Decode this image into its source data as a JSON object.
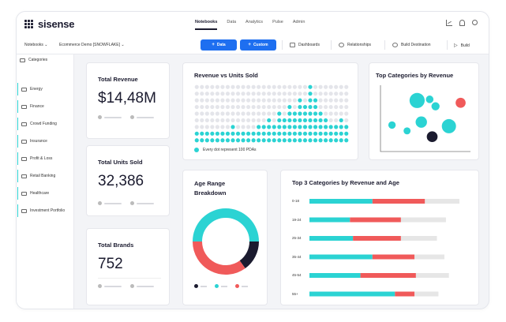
{
  "app": {
    "logo_text": "sisense"
  },
  "nav": [
    {
      "label": "Notebooks",
      "active": true
    },
    {
      "label": "Data",
      "active": false
    },
    {
      "label": "Analytics",
      "active": false
    },
    {
      "label": "Pulse",
      "active": false
    },
    {
      "label": "Admin",
      "active": false
    }
  ],
  "top_icons": [
    "chart-icon",
    "bell-icon",
    "user-icon"
  ],
  "toolbar": {
    "notebooks_label": "Notebooks",
    "model_label": "Ecommerce Demo [SNOWFLAKE]",
    "add_data_label": "Data",
    "add_custom_label": "Custom",
    "dashboards_label": "Dashboards",
    "relationships_label": "Relationships",
    "build_destination_label": "Build Destination",
    "build_label": "Build"
  },
  "sidebar": {
    "header": "Categories",
    "items": [
      {
        "label": "Energy"
      },
      {
        "label": "Finance"
      },
      {
        "label": "Crowd Funding"
      },
      {
        "label": "Insurance"
      },
      {
        "label": "Profit & Loss"
      },
      {
        "label": "Retail Banking"
      },
      {
        "label": "Healthcare"
      },
      {
        "label": "Investment Portfolio"
      }
    ]
  },
  "kpis": [
    {
      "title": "Total Revenue",
      "value": "$14,48M"
    },
    {
      "title": "Total Units Sold",
      "value": "32,386"
    },
    {
      "title": "Total Brands",
      "value": "752"
    }
  ],
  "colors": {
    "accent": "#2bd3d3",
    "red": "#f05a5a",
    "dark": "#1b1b2f",
    "grey": "#e6e6e6",
    "primary": "#1e6ff0"
  },
  "charts": {
    "dot_matrix": {
      "title": "Revenue vs Units Sold",
      "legend": "Every dot represent 100 PDAs",
      "chart_data": {
        "type": "bar",
        "columns": [
          2,
          2,
          2,
          2,
          2,
          2,
          2,
          3,
          2,
          2,
          2,
          2,
          3,
          3,
          4,
          3,
          5,
          4,
          6,
          5,
          7,
          6,
          9,
          7,
          5,
          4,
          3,
          3,
          4,
          3
        ],
        "max_dots": 9
      }
    },
    "scatter": {
      "title": "Top Categories by Revenue",
      "chart_data": {
        "type": "scatter",
        "points": [
          {
            "x": 0.4,
            "y": 0.82,
            "size": 0.55,
            "color": "#2bd3d3"
          },
          {
            "x": 0.55,
            "y": 0.84,
            "size": 0.15,
            "color": "#2bd3d3"
          },
          {
            "x": 0.62,
            "y": 0.72,
            "size": 0.18,
            "color": "#2bd3d3"
          },
          {
            "x": 0.92,
            "y": 0.78,
            "size": 0.28,
            "color": "#f05a5a"
          },
          {
            "x": 0.1,
            "y": 0.4,
            "size": 0.14,
            "color": "#2bd3d3"
          },
          {
            "x": 0.45,
            "y": 0.45,
            "size": 0.35,
            "color": "#2bd3d3"
          },
          {
            "x": 0.78,
            "y": 0.38,
            "size": 0.5,
            "color": "#2bd3d3"
          },
          {
            "x": 0.28,
            "y": 0.3,
            "size": 0.12,
            "color": "#2bd3d3"
          },
          {
            "x": 0.58,
            "y": 0.2,
            "size": 0.32,
            "color": "#1b1b2f"
          }
        ]
      }
    },
    "donut": {
      "title": "Age Range Breakdown",
      "chart_data": {
        "type": "pie",
        "slices": [
          {
            "value": 50,
            "color": "#2bd3d3"
          },
          {
            "value": 15,
            "color": "#1b1b2f"
          },
          {
            "value": 35,
            "color": "#f05a5a"
          }
        ]
      }
    },
    "hbar": {
      "title": "Top 3 Categories by Revenue and Age",
      "chart_data": {
        "type": "bar",
        "orientation": "horizontal",
        "categories": [
          "0-18",
          "19-24",
          "25-34",
          "35-44",
          "45-54",
          "55+"
        ],
        "series": [
          {
            "color": "#2bd3d3",
            "values": [
              42,
              27,
              29,
              42,
              34,
              57
            ]
          },
          {
            "color": "#f05a5a",
            "values": [
              35,
              34,
              32,
              28,
              37,
              13
            ]
          },
          {
            "color": "#e6e6e6",
            "values": [
              23,
              30,
              24,
              20,
              22,
              16
            ]
          }
        ]
      }
    }
  }
}
